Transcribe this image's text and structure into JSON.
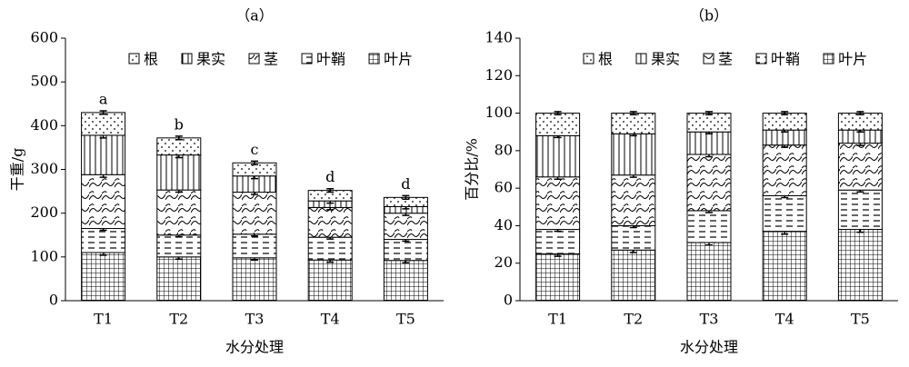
{
  "chart_data": [
    {
      "type": "stacked_bar",
      "title": "（a）",
      "ylabel": "干重/g",
      "xlabel": "水分处理",
      "categories": [
        "T1",
        "T2",
        "T3",
        "T4",
        "T5"
      ],
      "series": [
        {
          "name": "根",
          "pattern": "dots",
          "values": [
            52,
            39,
            30,
            24,
            21
          ],
          "errors": [
            4,
            4,
            4,
            4,
            4
          ]
        },
        {
          "name": "果实",
          "pattern": "vlines",
          "values": [
            90,
            80,
            37,
            15,
            15
          ],
          "errors": [
            6,
            6,
            6,
            5,
            5
          ]
        },
        {
          "name": "茎",
          "pattern": "wave",
          "values": [
            123,
            103,
            96,
            68,
            60
          ],
          "errors": [
            6,
            5,
            5,
            5,
            5
          ]
        },
        {
          "name": "叶鞘",
          "pattern": "dash",
          "values": [
            55,
            50,
            54,
            52,
            48
          ],
          "errors": [
            4,
            4,
            4,
            4,
            4
          ]
        },
        {
          "name": "叶片",
          "pattern": "grid",
          "values": [
            110,
            100,
            98,
            93,
            92
          ],
          "errors": [
            6,
            5,
            5,
            5,
            5
          ]
        }
      ],
      "labels": [
        "a",
        "b",
        "c",
        "d",
        "d"
      ],
      "ylim": [
        0,
        600
      ],
      "yticks": [
        0,
        100,
        200,
        300,
        400,
        500,
        600
      ]
    },
    {
      "type": "stacked_bar",
      "title": "（b）",
      "ylabel": "百分比/%",
      "xlabel": "水分处理",
      "categories": [
        "T1",
        "T2",
        "T3",
        "T4",
        "T5"
      ],
      "series": [
        {
          "name": "根",
          "pattern": "dots",
          "values": [
            12,
            11,
            10,
            9,
            9
          ],
          "errors": [
            0.8,
            0.8,
            0.8,
            0.8,
            0.8
          ]
        },
        {
          "name": "果实",
          "pattern": "vlines",
          "values": [
            22,
            22,
            12,
            8,
            7
          ],
          "errors": [
            1,
            1,
            1,
            1,
            1
          ]
        },
        {
          "name": "茎",
          "pattern": "wave",
          "values": [
            28,
            27,
            30,
            27,
            25
          ],
          "errors": [
            1.2,
            1.2,
            1.2,
            1.2,
            1.2
          ]
        },
        {
          "name": "叶鞘",
          "pattern": "dash",
          "values": [
            13,
            13,
            17,
            19,
            21
          ],
          "errors": [
            1,
            1,
            1,
            1,
            1
          ]
        },
        {
          "name": "叶片",
          "pattern": "grid",
          "values": [
            25,
            27,
            31,
            37,
            38
          ],
          "errors": [
            1.3,
            1.3,
            1.3,
            1.5,
            1.5
          ]
        }
      ],
      "ylim": [
        0,
        140
      ],
      "yticks": [
        0,
        20,
        40,
        60,
        80,
        100,
        120,
        140
      ]
    }
  ]
}
